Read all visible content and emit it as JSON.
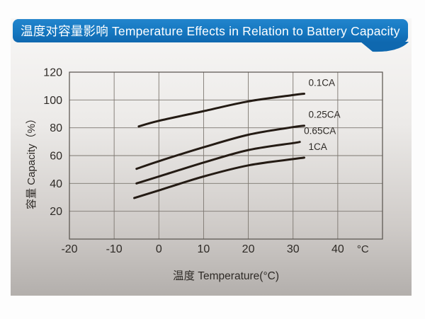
{
  "banner": {
    "title": "温度对容量影响 Temperature Effects in Relation to Battery Capacity",
    "color": "#1577c0"
  },
  "chart_data": {
    "type": "line",
    "title": "",
    "xlabel": "温度  Temperature(°C)",
    "ylabel": "容量 Capacity（%）",
    "x_unit": "°C",
    "xlim": [
      -20,
      50
    ],
    "ylim": [
      0,
      120
    ],
    "x_ticks": [
      -20,
      -10,
      0,
      10,
      20,
      30,
      40
    ],
    "y_ticks": [
      20,
      40,
      60,
      80,
      100,
      120
    ],
    "x_gridlines": [
      -10,
      0,
      10,
      20,
      30,
      40
    ],
    "y_gridlines": [
      20,
      40,
      60,
      80,
      100
    ],
    "grid": true,
    "legend_position": "labels at right end of each curve",
    "line_color": "#241b14",
    "grid_color": "#7d7770",
    "series": [
      {
        "name": "0.1CA",
        "points": [
          [
            -4.5,
            81
          ],
          [
            0,
            85
          ],
          [
            10,
            92
          ],
          [
            20,
            99
          ],
          [
            30,
            103.5
          ],
          [
            32.5,
            104.5
          ]
        ]
      },
      {
        "name": "0.25CA",
        "points": [
          [
            -5,
            50.5
          ],
          [
            0,
            56
          ],
          [
            10,
            66
          ],
          [
            20,
            75
          ],
          [
            30,
            80.5
          ],
          [
            32.5,
            81.5
          ]
        ]
      },
      {
        "name": "0.65CA",
        "points": [
          [
            -5,
            40
          ],
          [
            0,
            45
          ],
          [
            10,
            55
          ],
          [
            20,
            64
          ],
          [
            30,
            69
          ],
          [
            31.5,
            69.8
          ]
        ]
      },
      {
        "name": "1CA",
        "points": [
          [
            -5.5,
            29.5
          ],
          [
            0,
            35
          ],
          [
            10,
            45
          ],
          [
            20,
            53
          ],
          [
            30,
            57.5
          ],
          [
            32.5,
            58.5
          ]
        ]
      }
    ]
  }
}
